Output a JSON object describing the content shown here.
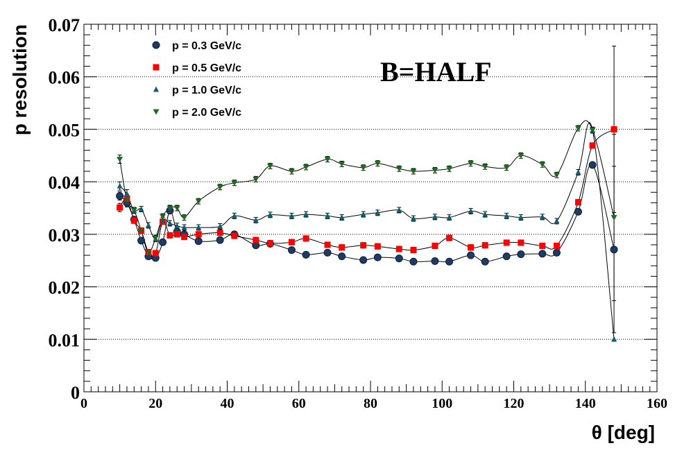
{
  "chart_data": {
    "type": "scatter",
    "title": "",
    "xlabel": "θ [deg]",
    "ylabel": "p resolution",
    "xlim": [
      0,
      160
    ],
    "ylim": [
      0,
      0.07
    ],
    "x_ticks": [
      "0",
      "20",
      "40",
      "60",
      "80",
      "100",
      "120",
      "140",
      "160"
    ],
    "y_ticks": [
      "0",
      "0.01",
      "0.02",
      "0.03",
      "0.04",
      "0.05",
      "0.06",
      "0.07"
    ],
    "grid": "horizontal-dotted",
    "legend_position": "top-left",
    "annotation": "B=HALF",
    "series": [
      {
        "name": "p = 0.3 GeV/c",
        "marker": "circle",
        "color": "#1f3b63",
        "x": [
          10,
          12,
          14,
          16,
          18,
          20,
          22,
          24,
          26,
          28,
          32,
          38,
          42,
          48,
          52,
          58,
          62,
          68,
          72,
          78,
          82,
          88,
          92,
          98,
          102,
          108,
          112,
          118,
          122,
          128,
          132,
          138,
          142,
          148
        ],
        "y": [
          0.0373,
          0.036,
          0.0328,
          0.0288,
          0.0258,
          0.0255,
          0.0285,
          0.0345,
          0.0305,
          0.03,
          0.0287,
          0.0289,
          0.03,
          0.0279,
          0.0282,
          0.027,
          0.0261,
          0.0265,
          0.0258,
          0.0251,
          0.0256,
          0.0254,
          0.0248,
          0.0249,
          0.0248,
          0.026,
          0.0248,
          0.0258,
          0.0262,
          0.0263,
          0.0265,
          0.0343,
          0.0432,
          0.0271
        ]
      },
      {
        "name": "p = 0.5 GeV/c",
        "marker": "square",
        "color": "#ff0000",
        "x": [
          10,
          12,
          14,
          16,
          18,
          20,
          22,
          24,
          26,
          28,
          32,
          38,
          42,
          48,
          52,
          58,
          62,
          68,
          72,
          78,
          82,
          88,
          92,
          98,
          102,
          108,
          112,
          118,
          122,
          128,
          132,
          138,
          142,
          148
        ],
        "y": [
          0.0351,
          0.0368,
          0.0326,
          0.0307,
          0.0266,
          0.0264,
          0.0324,
          0.0298,
          0.03,
          0.0295,
          0.03,
          0.0303,
          0.0297,
          0.0289,
          0.0283,
          0.0285,
          0.0292,
          0.028,
          0.0275,
          0.0279,
          0.0277,
          0.0272,
          0.027,
          0.0278,
          0.0293,
          0.0275,
          0.0279,
          0.0284,
          0.0284,
          0.0278,
          0.0278,
          0.0361,
          0.0469,
          0.05
        ]
      },
      {
        "name": "p = 1.0 GeV/c",
        "marker": "triangle-up",
        "color": "#0f5f6f",
        "x": [
          10,
          12,
          14,
          16,
          18,
          20,
          22,
          24,
          26,
          28,
          32,
          38,
          42,
          48,
          52,
          58,
          62,
          68,
          72,
          78,
          82,
          88,
          92,
          98,
          102,
          108,
          112,
          118,
          122,
          128,
          132,
          138,
          142,
          148
        ],
        "y": [
          0.0392,
          0.0377,
          0.0345,
          0.0348,
          0.0317,
          0.0291,
          0.0327,
          0.0321,
          0.0316,
          0.0313,
          0.0313,
          0.0315,
          0.0335,
          0.0327,
          0.0337,
          0.0335,
          0.0338,
          0.0335,
          0.0332,
          0.0338,
          0.0341,
          0.0346,
          0.033,
          0.0333,
          0.0332,
          0.0344,
          0.0338,
          0.0335,
          0.0332,
          0.0333,
          0.0325,
          0.0418,
          0.0498,
          0.01
        ]
      },
      {
        "name": "p = 2.0 GeV/c",
        "marker": "triangle-down",
        "color": "#1e6b1e",
        "x": [
          10,
          12,
          14,
          16,
          18,
          20,
          22,
          24,
          26,
          28,
          32,
          38,
          42,
          48,
          52,
          58,
          62,
          68,
          72,
          78,
          82,
          88,
          92,
          98,
          102,
          108,
          112,
          118,
          122,
          128,
          132,
          138,
          142,
          148
        ],
        "y": [
          0.0443,
          0.0365,
          0.0346,
          0.0307,
          0.0265,
          0.0293,
          0.0334,
          0.035,
          0.035,
          0.0332,
          0.0363,
          0.039,
          0.0398,
          0.0405,
          0.043,
          0.042,
          0.0428,
          0.0443,
          0.0434,
          0.0427,
          0.0435,
          0.0425,
          0.042,
          0.0422,
          0.0425,
          0.0435,
          0.0429,
          0.0427,
          0.045,
          0.0433,
          0.0413,
          0.0502,
          0.0499,
          0.0332
        ]
      }
    ]
  }
}
